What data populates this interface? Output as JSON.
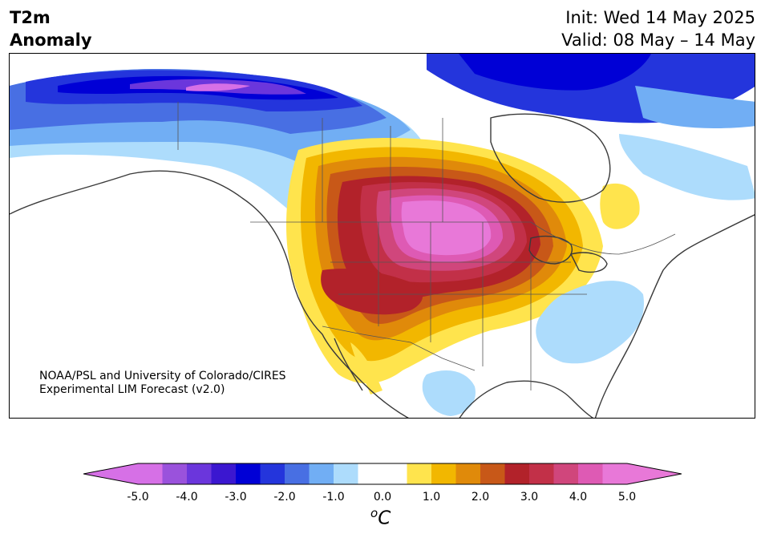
{
  "title": {
    "line1": "T2m",
    "line2": "Anomaly"
  },
  "dates": {
    "init": "Init: Wed 14 May 2025",
    "valid": "Valid: 08 May – 14 May"
  },
  "credit": {
    "line1": "NOAA/PSL and University of Colorado/CIRES",
    "line2": "Experimental LIM Forecast (v2.0)"
  },
  "colorbar": {
    "unit_superscript": "o",
    "unit_letter": "C",
    "ticks": [
      "-5.0",
      "-4.0",
      "-3.0",
      "-2.0",
      "-1.0",
      "0.0",
      "1.0",
      "2.0",
      "3.0",
      "4.0",
      "5.0"
    ],
    "colors": [
      "#d670e6",
      "#9a52dc",
      "#6b36dc",
      "#3b17d0",
      "#0000d6",
      "#2435dc",
      "#486fe3",
      "#71aef4",
      "#addcfc",
      "#ffffff",
      "#ffffff",
      "#ffe44d",
      "#f2b700",
      "#e08a0a",
      "#c85818",
      "#b2222a",
      "#c23048",
      "#d0467c",
      "#de5ab4",
      "#e878d8"
    ],
    "under_color": "#d670e6",
    "over_color": "#e878d8"
  }
}
